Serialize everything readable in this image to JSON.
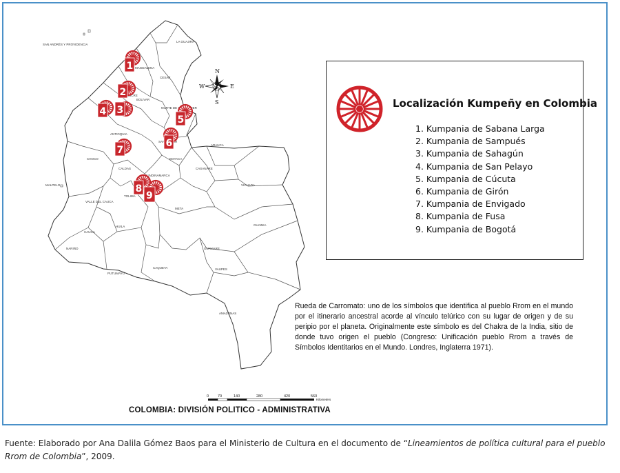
{
  "legend": {
    "title": "Localización Kumpeñy en Colombia",
    "items": [
      "1. Kumpania de Sabana Larga",
      "2. Kumpania de Sampués",
      "3. Kumpania de Sahagún",
      "4. Kumpania de San Pelayo",
      "5. Kumpania de Cúcuta",
      "6. Kumpania de Girón",
      "7. Kumpania de Envigado",
      "8. Kumpania de Fusa",
      "9. Kumpania de Bogotá"
    ]
  },
  "note": "Rueda de Carromato: uno de los símbolos que identifica al pueblo Rrom en el mundo por el itinerario ancestral acorde al vínculo telúrico con su lugar de origen y de su   peripio por el planeta. Originalmente este símbolo es del Chakra de la India, sitio de donde tuvo origen el pueblo (Congreso: Unificación pueblo Rrom a través de Símbolos Identitarios en el Mundo. Londres, Inglaterra 1971).",
  "map_title": "COLOMBIA: DIVISIÓN POLITICO - ADMINISTRATIVA",
  "scale": {
    "ticks": [
      "0",
      "70",
      "140",
      "280",
      "420",
      "560"
    ],
    "unit": "Kilometers"
  },
  "compass": {
    "n": "N",
    "s": "S",
    "e": "E",
    "w": "W"
  },
  "departments": [
    "SAN ANDRÉS Y PROVIDENCIA",
    "LA GUAJIRA",
    "MAGDALENA",
    "CESAR",
    "SUCRE",
    "BOLIVAR",
    "NORTE DE SANTANDER",
    "SANTANDER",
    "ANTIOQUIA",
    "ARAUCA",
    "CASANARE",
    "BOYACA",
    "CALDAS",
    "CUNDINAMARCA",
    "VICHADA",
    "CHOCO",
    "META",
    "TOLIMA",
    "VALLE DEL CAUCA",
    "CAUCA",
    "HUILA",
    "GUAINIA",
    "NARIÑO",
    "CAQUETA",
    "GUAVIARE",
    "PUTUMAYO",
    "VAUPES",
    "AMAZONAS",
    "MALPELO"
  ],
  "markers": [
    "1",
    "2",
    "3",
    "4",
    "5",
    "6",
    "7",
    "8",
    "9"
  ],
  "caption": {
    "prefix": "Fuente: Elaborado por Ana Dalila Gómez Baos para el Ministerio de Cultura en el documento de “",
    "title": "Lineamientos de política cultural para el pueblo Rrom de Colombia",
    "suffix": "”, 2009."
  },
  "colors": {
    "frame": "#4a90c8",
    "wheel": "#d0232a",
    "marker": "#c8262c"
  }
}
